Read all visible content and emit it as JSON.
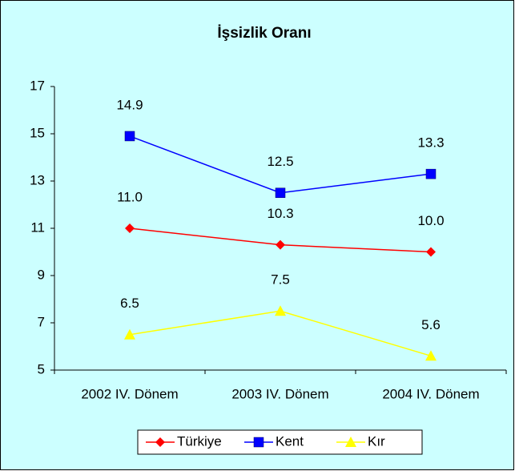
{
  "chart_data": {
    "type": "line",
    "title": "İşsizlik Oranı",
    "categories": [
      "2002 IV. Dönem",
      "2003 IV. Dönem",
      "2004 IV. Dönem"
    ],
    "series": [
      {
        "name": "Türkiye",
        "color": "#ff0000",
        "marker": "diamond",
        "values": [
          11.0,
          10.3,
          10.0
        ],
        "value_labels": [
          "11.0",
          "10.3",
          "10.0"
        ]
      },
      {
        "name": "Kent",
        "color": "#0000ff",
        "marker": "square",
        "values": [
          14.9,
          12.5,
          13.3
        ],
        "value_labels": [
          "14.9",
          "12.5",
          "13.3"
        ]
      },
      {
        "name": "Kır",
        "color": "#ffff00",
        "marker": "triangle",
        "values": [
          6.5,
          7.5,
          5.6
        ],
        "value_labels": [
          "6.5",
          "7.5",
          "5.6"
        ]
      }
    ],
    "ylim": [
      5,
      17
    ],
    "yticks": [
      5,
      7,
      9,
      11,
      13,
      15,
      17
    ],
    "grid": false,
    "legend": "bottom"
  }
}
